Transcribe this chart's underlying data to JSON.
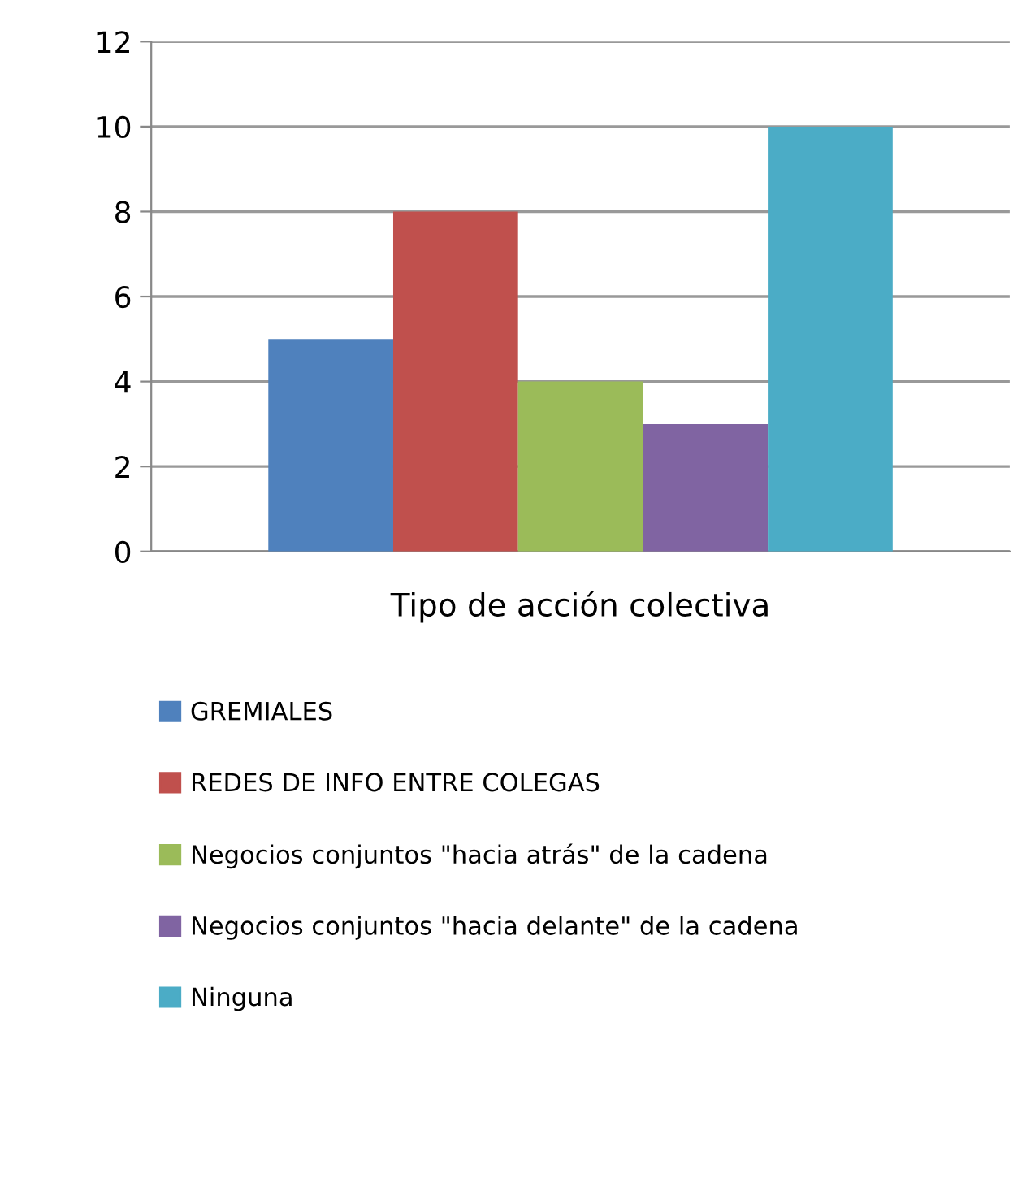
{
  "chart_data": {
    "type": "bar",
    "xlabel": "Tipo de acción colectiva",
    "categories": [
      null
    ],
    "series": [
      {
        "name": "GREMIALES",
        "color": "#4f81bd",
        "values": [
          5
        ]
      },
      {
        "name": "REDES DE INFO ENTRE COLEGAS",
        "color": "#c0504d",
        "values": [
          8
        ]
      },
      {
        "name": "Negocios conjuntos \"hacia atrás\" de la cadena",
        "color": "#9bbb59",
        "values": [
          4
        ]
      },
      {
        "name": "Negocios conjuntos \"hacia delante\" de la cadena",
        "color": "#8064a2",
        "values": [
          3
        ]
      },
      {
        "name": "Ninguna",
        "color": "#4bacc6",
        "values": [
          10
        ]
      }
    ],
    "ylim": [
      0,
      12
    ],
    "yticks": [
      0,
      2,
      4,
      6,
      8,
      10,
      12
    ],
    "grid": "y",
    "legend": "bottom"
  }
}
